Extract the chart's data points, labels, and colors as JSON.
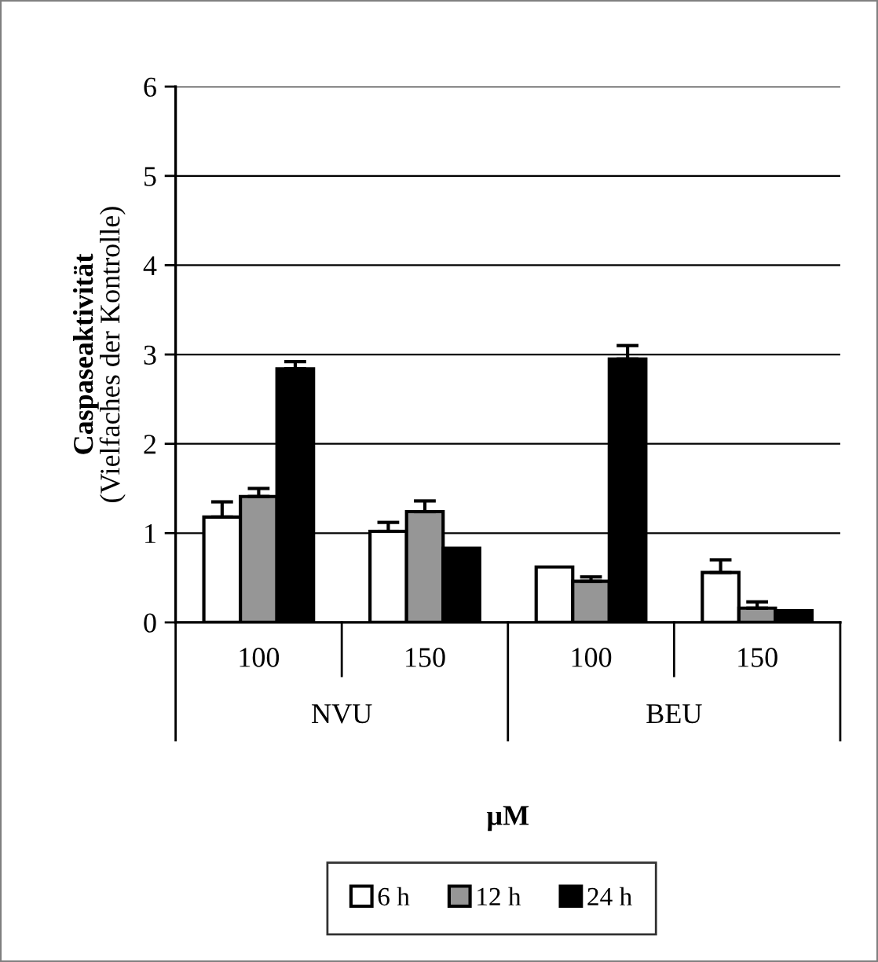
{
  "chart_data": {
    "type": "bar",
    "ylabel": "Caspaseaktivität\n(Vielfaches der Kontrolle)",
    "xlabel": "µM",
    "categories": [
      "100",
      "150",
      "100",
      "150"
    ],
    "annotations": [
      "NVU",
      "BEU"
    ],
    "series": [
      {
        "name": "6 h",
        "color": "#ffffff",
        "values": [
          1.18,
          1.02,
          0.62,
          0.56
        ],
        "errors": [
          [
            1.18,
            1.35
          ],
          [
            1.02,
            1.12
          ],
          null,
          [
            0.56,
            0.7
          ]
        ]
      },
      {
        "name": "12 h",
        "color": "#969696",
        "values": [
          1.41,
          1.24,
          0.46,
          0.16
        ],
        "errors": [
          [
            1.41,
            1.5
          ],
          [
            1.24,
            1.36
          ],
          [
            0.46,
            0.51
          ],
          [
            0.16,
            0.23
          ]
        ]
      },
      {
        "name": "24 h",
        "color": "#000000",
        "values": [
          2.84,
          0.83,
          2.95,
          0.13
        ],
        "errors": [
          [
            2.84,
            2.92
          ],
          null,
          [
            2.95,
            3.1
          ],
          null
        ]
      }
    ],
    "ylim": [
      0,
      6
    ],
    "yticks": [
      0,
      1,
      2,
      3,
      4,
      5,
      6
    ],
    "grid": "y",
    "legend": "bottom"
  }
}
